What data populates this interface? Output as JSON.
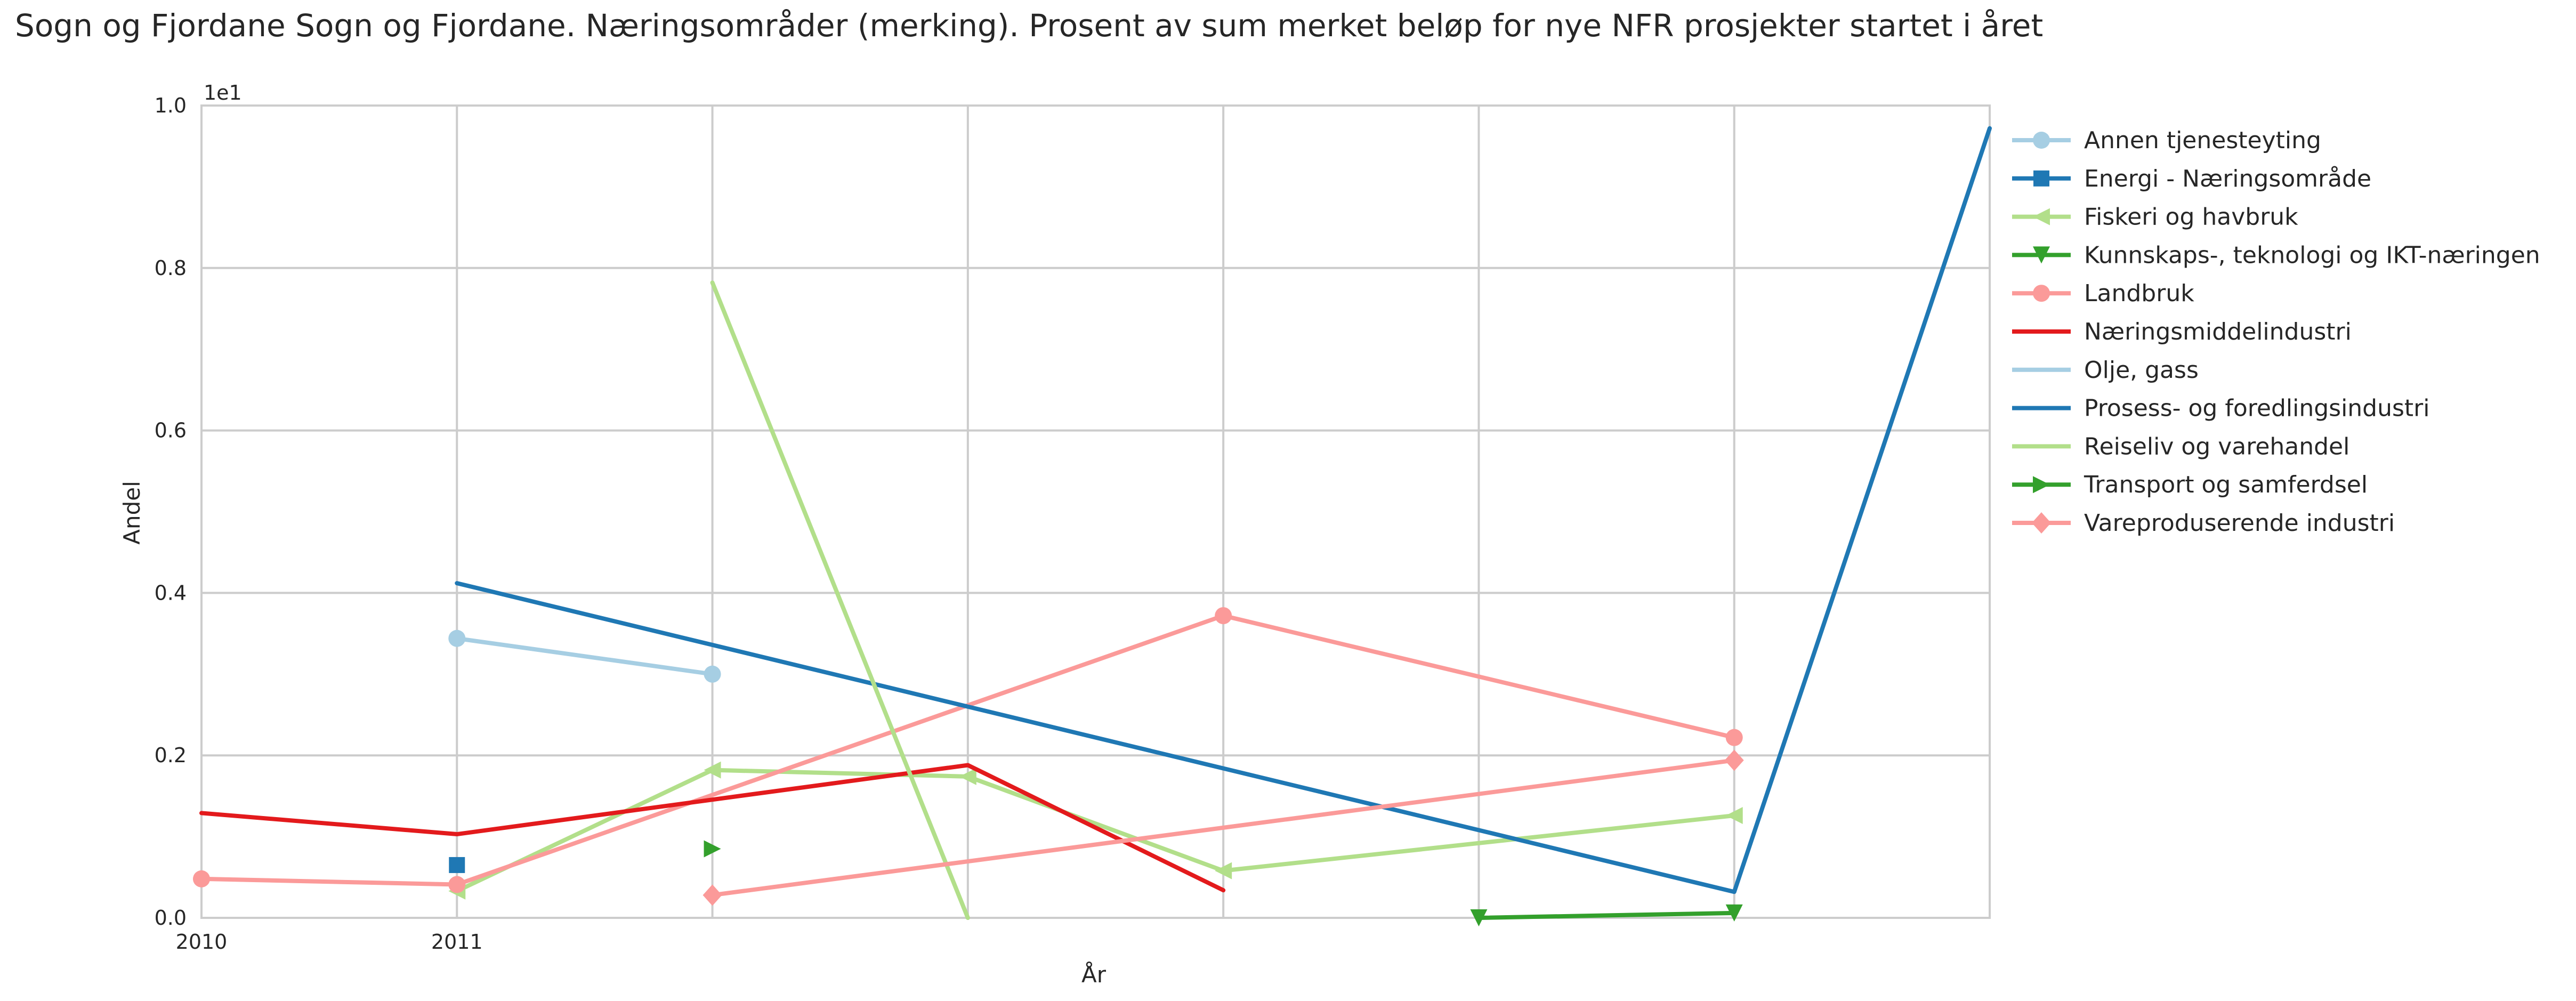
{
  "chart_data": {
    "type": "line",
    "title": "Sogn og Fjordane Sogn og Fjordane. Næringsområder (merking). Prosent av sum merket beløp for nye NFR prosjekter startet i året",
    "xlabel": "År",
    "ylabel": "Andel",
    "offset_label": "1e1",
    "xlim": [
      2010,
      2017
    ],
    "ylim": [
      0,
      1.0
    ],
    "x_ticks": [
      2010,
      2011
    ],
    "x_tick_labels": [
      "2010",
      "2011"
    ],
    "x_gridlines": [
      2010,
      2011,
      2012,
      2013,
      2014,
      2015,
      2016,
      2017
    ],
    "y_ticks": [
      0,
      0.2,
      0.4,
      0.6,
      0.8,
      1.0
    ],
    "y_tick_labels": [
      "0.0",
      "0.2",
      "0.4",
      "0.6",
      "0.8",
      "1.0"
    ],
    "grid": true,
    "legend_position": "outside-right",
    "series": [
      {
        "name": "Annen tjenesteyting",
        "color": "#a6cee3",
        "marker": "circle",
        "points": [
          [
            2011,
            0.344
          ],
          [
            2012,
            0.3
          ]
        ]
      },
      {
        "name": "Energi - Næringsområde",
        "color": "#1f78b4",
        "marker": "square",
        "points": [
          [
            2011,
            0.065
          ]
        ]
      },
      {
        "name": "Fiskeri og havbruk",
        "color": "#b2df8a",
        "marker": "triangle-left",
        "points": [
          [
            2011,
            0.033
          ],
          [
            2012,
            0.182
          ],
          [
            2013,
            0.174
          ],
          [
            2014,
            0.058
          ],
          [
            2016,
            0.126
          ]
        ]
      },
      {
        "name": "Kunnskaps-, teknologi og IKT-næringen",
        "color": "#33a02c",
        "marker": "triangle-down",
        "points": [
          [
            2015,
            0.0
          ],
          [
            2016,
            0.006
          ]
        ]
      },
      {
        "name": "Landbruk",
        "color": "#fb9a99",
        "marker": "circle",
        "points": [
          [
            2010,
            0.048
          ],
          [
            2011,
            0.041
          ],
          [
            2014,
            0.372
          ],
          [
            2016,
            0.222
          ]
        ]
      },
      {
        "name": "Næringsmiddelindustri",
        "color": "#e31a1c",
        "marker": "none",
        "points": [
          [
            2010,
            0.129
          ],
          [
            2011,
            0.103
          ],
          [
            2013,
            0.188
          ],
          [
            2014,
            0.034
          ]
        ]
      },
      {
        "name": "Olje, gass",
        "color": "#a6cee3",
        "marker": "none",
        "points": []
      },
      {
        "name": "Prosess- og foredlingsindustri",
        "color": "#1f78b4",
        "marker": "none",
        "points": [
          [
            2011,
            0.412
          ],
          [
            2016,
            0.032
          ],
          [
            2017,
            0.972
          ]
        ]
      },
      {
        "name": "Reiseliv og varehandel",
        "color": "#b2df8a",
        "marker": "none",
        "points": [
          [
            2012,
            0.782
          ],
          [
            2013,
            0.0
          ]
        ]
      },
      {
        "name": "Transport og samferdsel",
        "color": "#33a02c",
        "marker": "triangle-right",
        "points": [
          [
            2012,
            0.085
          ]
        ]
      },
      {
        "name": "Vareproduserende industri",
        "color": "#fb9a99",
        "marker": "diamond",
        "points": [
          [
            2012,
            0.028
          ],
          [
            2016,
            0.194
          ]
        ]
      }
    ]
  }
}
